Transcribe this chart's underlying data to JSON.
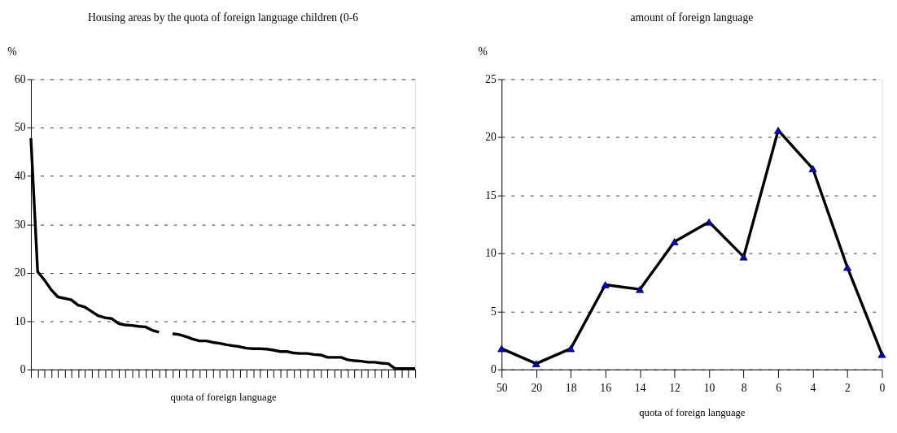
{
  "chart_data": [
    {
      "type": "line",
      "title": "Housing areas by the quota of foreign language children (0-6",
      "ylabel": "%",
      "xlabel": "quota of foreign language",
      "categories": [
        null,
        null,
        null,
        null,
        null,
        null,
        null,
        null,
        null,
        null,
        null,
        null,
        null,
        null,
        null,
        null,
        null,
        null,
        null,
        null,
        null,
        null,
        null,
        null,
        null,
        null,
        null,
        null,
        null,
        null,
        null,
        null,
        null,
        null,
        null,
        null,
        null,
        null,
        null,
        null,
        null,
        null,
        null,
        null,
        null,
        null,
        null,
        null,
        null,
        null,
        null,
        null,
        null,
        null,
        null,
        null,
        null,
        null
      ],
      "series": [
        {
          "color": "#000000",
          "values": [
            47.8,
            20.2,
            18.5,
            16.5,
            15.0,
            14.7,
            14.4,
            13.3,
            12.9,
            12.0,
            11.1,
            10.7,
            10.5,
            9.5,
            9.2,
            9.1,
            8.9,
            8.8,
            8.1,
            7.7,
            null,
            null,
            null,
            null,
            null,
            null,
            null,
            null,
            null,
            null,
            null,
            null,
            null,
            null,
            null,
            null,
            null,
            null,
            null,
            null,
            null,
            null,
            null,
            null,
            null,
            null,
            null,
            null,
            null,
            null,
            null,
            null,
            null,
            null,
            null,
            null,
            null,
            null
          ]
        },
        {
          "color": "#000000",
          "values": [
            null,
            null,
            null,
            null,
            null,
            null,
            null,
            null,
            null,
            null,
            null,
            null,
            null,
            null,
            null,
            null,
            null,
            null,
            null,
            null,
            null,
            7.4,
            7.2,
            6.8,
            6.3,
            5.9,
            5.9,
            5.6,
            5.4,
            5.1,
            4.9,
            4.7,
            4.4,
            4.3,
            4.3,
            4.2,
            4.0,
            3.7,
            3.7,
            3.4,
            3.3,
            3.3,
            3.1,
            3.0,
            2.5,
            2.5,
            2.5,
            2.0,
            1.8,
            1.7,
            1.5,
            1.5,
            1.3,
            1.2,
            0.2,
            0.2,
            0.2,
            0.2
          ]
        }
      ],
      "ylim": [
        0,
        60
      ],
      "yticks": [
        0,
        10,
        20,
        30,
        40,
        50,
        60
      ],
      "grid": "y",
      "marker": "none",
      "line_style": "solid",
      "tick_labels": "y"
    },
    {
      "type": "line",
      "title": "amount of foreign language",
      "ylabel": "%",
      "xlabel": "quota of foreign language",
      "categories": [
        "50",
        "20",
        "18",
        "16",
        "14",
        "12",
        "10",
        "8",
        "6",
        "4",
        "2",
        "0"
      ],
      "series": [
        {
          "color": "#0000cc",
          "values": [
            1.8,
            0.5,
            1.8,
            7.3,
            6.9,
            11.0,
            12.7,
            9.7,
            20.6,
            17.3,
            8.8,
            1.3
          ]
        }
      ],
      "ylim": [
        0,
        25
      ],
      "yticks": [
        0,
        5,
        10,
        15,
        20,
        25
      ],
      "grid": "y",
      "marker": "triangle",
      "line_style": "solid"
    }
  ]
}
